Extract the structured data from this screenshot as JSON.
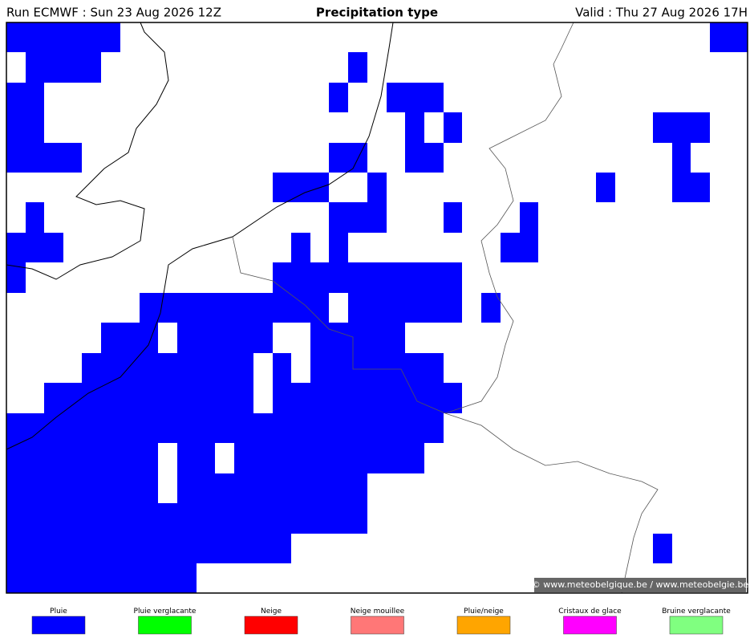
{
  "header": {
    "run": "Run ECMWF : Sun 23 Aug 2026 12Z",
    "title": "Precipitation type",
    "valid": "Valid : Thu 27 Aug 2026 17H"
  },
  "map": {
    "credit": "© www.meteobelgique.be / www.meteobelgie.be"
  },
  "legend": [
    {
      "label": "Pluie",
      "color": "#0000ff"
    },
    {
      "label": "Pluie verglacante",
      "color": "#00ff00"
    },
    {
      "label": "Neige",
      "color": "#ff0000"
    },
    {
      "label": "Neige mouillee",
      "color": "#ff7777"
    },
    {
      "label": "Pluie/neige",
      "color": "#ffa500"
    },
    {
      "label": "Cristaux de glace",
      "color": "#ff00ff"
    },
    {
      "label": "Bruine verglacante",
      "color": "#80ff80"
    }
  ]
}
